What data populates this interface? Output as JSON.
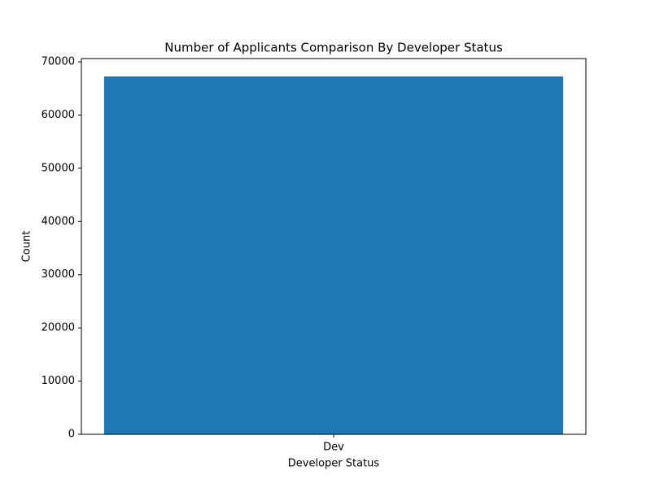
{
  "chart_data": {
    "type": "bar",
    "title": "Number of Applicants Comparison By Developer Status",
    "x_label": "Developer Status",
    "y_label": "Count",
    "categories": [
      "Dev"
    ],
    "values": [
      67250
    ],
    "color": "#1f77b4",
    "ylim": [
      0,
      70610
    ],
    "yticks": [
      0,
      10000,
      20000,
      30000,
      40000,
      50000,
      60000,
      70000
    ],
    "grid": false
  }
}
